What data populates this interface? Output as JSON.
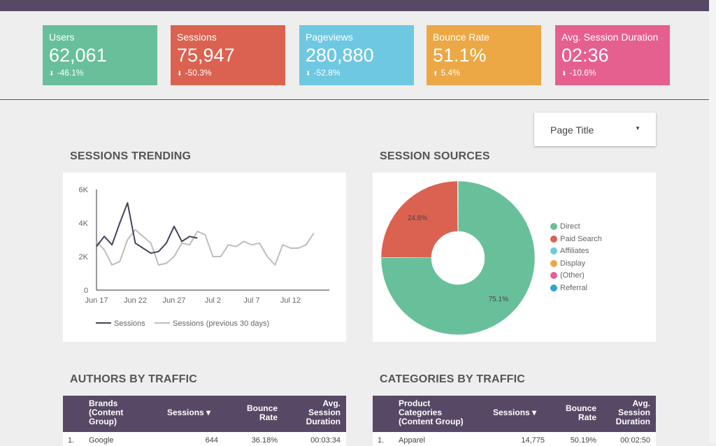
{
  "kpis": [
    {
      "label": "Users",
      "value": "62,061",
      "change": "-46.1%",
      "dir": "down",
      "color": "#68c09a"
    },
    {
      "label": "Sessions",
      "value": "75,947",
      "change": "-50.3%",
      "dir": "down",
      "color": "#db6250"
    },
    {
      "label": "Pageviews",
      "value": "280,880",
      "change": "-52.8%",
      "dir": "down",
      "color": "#6fc8e2"
    },
    {
      "label": "Bounce Rate",
      "value": "51.1%",
      "change": "5.4%",
      "dir": "up",
      "color": "#eca845"
    },
    {
      "label": "Avg. Session Duration",
      "value": "02:36",
      "change": "-10.6%",
      "dir": "down",
      "color": "#e6608f"
    }
  ],
  "filter": {
    "label": "Page Title"
  },
  "sections": {
    "trending": "SESSIONS TRENDING",
    "sources": "SESSION SOURCES",
    "authors": "AUTHORS BY TRAFFIC",
    "categories": "CATEGORIES BY TRAFFIC"
  },
  "chart_data": [
    {
      "type": "line",
      "title": "SESSIONS TRENDING",
      "y_ticks": [
        "6K",
        "4K",
        "2K",
        "0"
      ],
      "ylim": [
        0,
        6000
      ],
      "x_ticks": [
        "Jun 17",
        "Jun 22",
        "Jun 27",
        "Jul 2",
        "Jul 7",
        "Jul 12"
      ],
      "grid": false,
      "legend_position": "bottom",
      "series": [
        {
          "name": "Sessions",
          "color": "#4a3f5c",
          "values": [
            2600,
            3200,
            2700,
            4000,
            5200,
            2800,
            2500,
            2200,
            2300,
            2800,
            3800,
            2900,
            3200,
            3100
          ]
        },
        {
          "name": "Sessions (previous 30 days)",
          "color": "#bdbdbd",
          "values": [
            2900,
            2400,
            1500,
            1700,
            3000,
            3600,
            3200,
            2800,
            1500,
            1600,
            2000,
            2800,
            2700,
            3500,
            3300,
            2000,
            2000,
            2700,
            2600,
            2900,
            2700,
            2800,
            2000,
            1500,
            2700,
            2500,
            2500,
            2700,
            3400
          ]
        }
      ]
    },
    {
      "type": "pie",
      "title": "SESSION SOURCES",
      "legend_position": "right",
      "slices": [
        {
          "name": "Direct",
          "value": 75.1,
          "color": "#68c09a",
          "label": "75.1%"
        },
        {
          "name": "Paid Search",
          "value": 24.8,
          "color": "#db6250",
          "label": "24.8%"
        },
        {
          "name": "Affiliates",
          "value": 0.05,
          "color": "#6fc8e2"
        },
        {
          "name": "Display",
          "value": 0.03,
          "color": "#eca845"
        },
        {
          "name": "(Other)",
          "value": 0.01,
          "color": "#e6608f"
        },
        {
          "name": "Referral",
          "value": 0.01,
          "color": "#2fa6c4"
        }
      ]
    }
  ],
  "tables": {
    "authors": {
      "headers": [
        "Brands (Content Group)",
        "Sessions ▾",
        "Bounce Rate",
        "Avg. Session Duration"
      ],
      "row": {
        "idx": "1.",
        "name": "Google",
        "sessions": "644",
        "bounce": "36.18%",
        "duration": "00:03:34"
      }
    },
    "categories": {
      "headers": [
        "Product Categories (Content Group)",
        "Sessions ▾",
        "Bounce Rate",
        "Avg. Session Duration"
      ],
      "row": {
        "idx": "1.",
        "name": "Apparel",
        "sessions": "14,775",
        "bounce": "50.19%",
        "duration": "00:02:50"
      }
    }
  }
}
